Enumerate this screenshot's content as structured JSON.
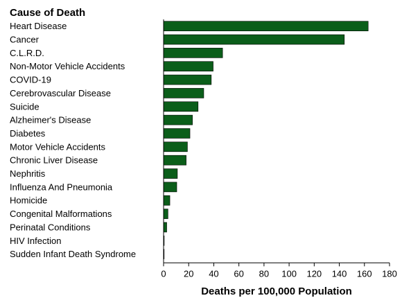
{
  "chart_data": {
    "type": "bar",
    "orientation": "horizontal",
    "title": "",
    "category_axis_title": "Cause of Death",
    "xlabel": "Deaths per 100,000 Population",
    "ylabel": "",
    "xlim": [
      0,
      180
    ],
    "xticks": [
      0,
      20,
      40,
      60,
      80,
      100,
      120,
      140,
      160,
      180
    ],
    "grid": false,
    "bar_color": "#0b5e1a",
    "categories": [
      "Heart Disease",
      "Cancer",
      "C.L.R.D.",
      "Non-Motor Vehicle Accidents",
      "COVID-19",
      "Cerebrovascular Disease",
      "Suicide",
      "Alzheimer's Disease",
      "Diabetes",
      "Motor Vehicle Accidents",
      "Chronic Liver Disease",
      "Nephritis",
      "Influenza And Pneumonia",
      "Homicide",
      "Congenital Malformations",
      "Perinatal Conditions",
      "HIV Infection",
      "Sudden Infant Death Syndrome"
    ],
    "values": [
      163,
      144,
      47,
      39.5,
      38,
      32,
      27.5,
      23,
      21,
      19,
      18,
      11,
      10.5,
      5,
      3.5,
      2.5,
      0.5,
      0.2
    ]
  }
}
